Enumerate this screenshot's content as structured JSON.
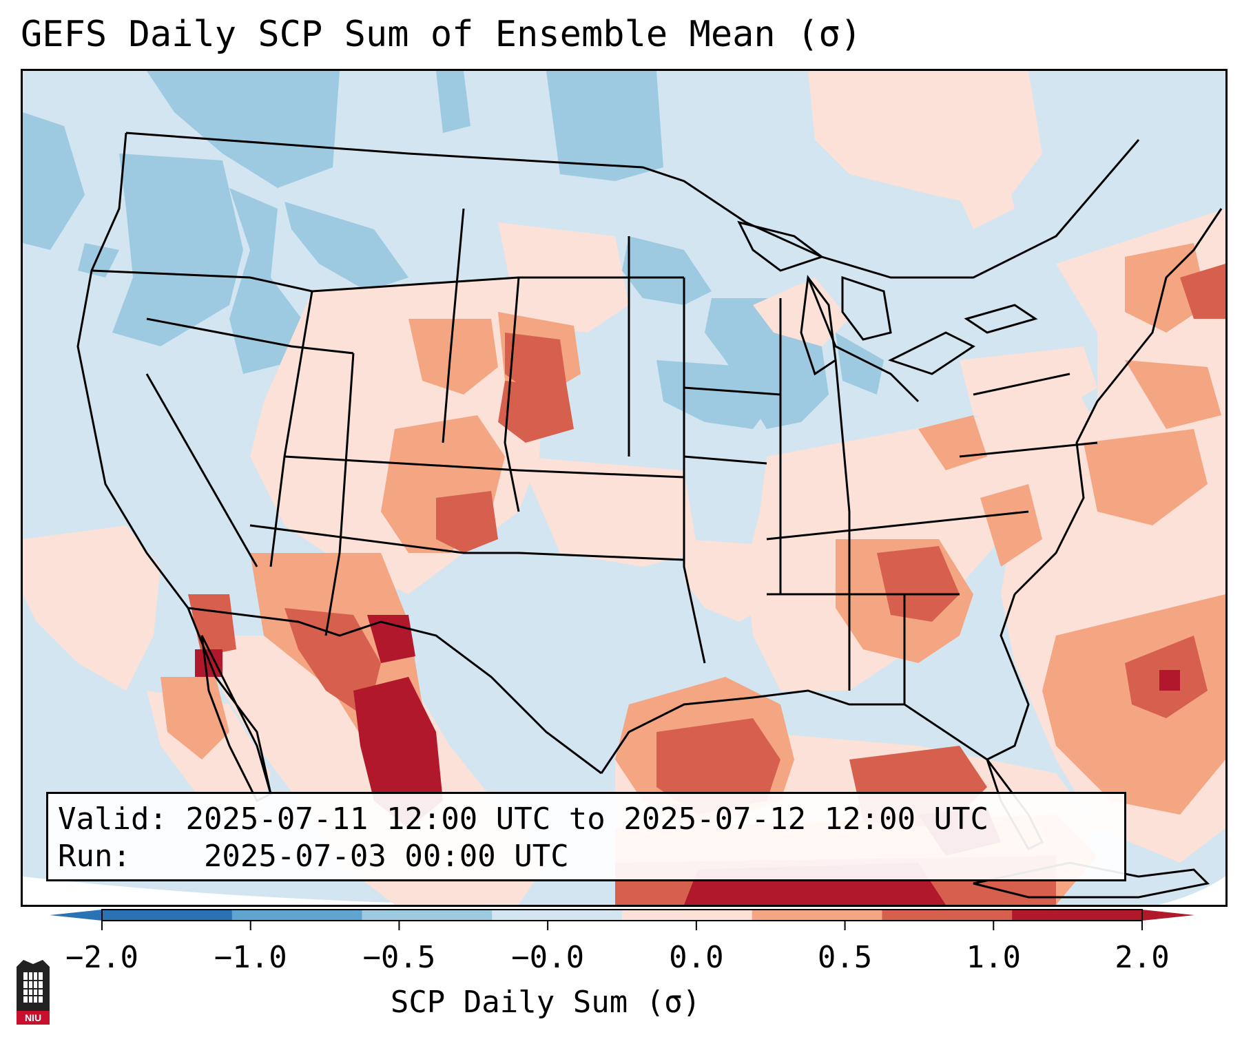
{
  "title": "GEFS Daily SCP Sum of Ensemble Mean (σ)",
  "info": {
    "valid_label": "Valid:",
    "valid_value": "2025-07-11 12:00 UTC to 2025-07-12 12:00 UTC",
    "run_label": "Run:",
    "run_value": "2025-07-03 00:00 UTC"
  },
  "colorbar": {
    "title": "SCP Daily Sum (σ)",
    "ticks": [
      "−2.0",
      "−1.0",
      "−0.5",
      "−0.0",
      "0.0",
      "0.5",
      "1.0",
      "2.0"
    ],
    "colors": [
      "#2a72b4",
      "#5fa5d0",
      "#9ecae1",
      "#d2e5f1",
      "#fbe1d7",
      "#f4a582",
      "#d6604d",
      "#b2182b"
    ]
  },
  "logo": {
    "text": "NIU"
  },
  "map": {
    "region": "Continental United States",
    "legend_colors": {
      "strong_neg": "#5fa5d0",
      "mod_neg": "#9ecae1",
      "weak_neg": "#d2e5f1",
      "weak_pos": "#fbe1d7",
      "mod_pos": "#f4a582",
      "strong_pos": "#d6604d",
      "max_pos": "#b2182b"
    }
  }
}
